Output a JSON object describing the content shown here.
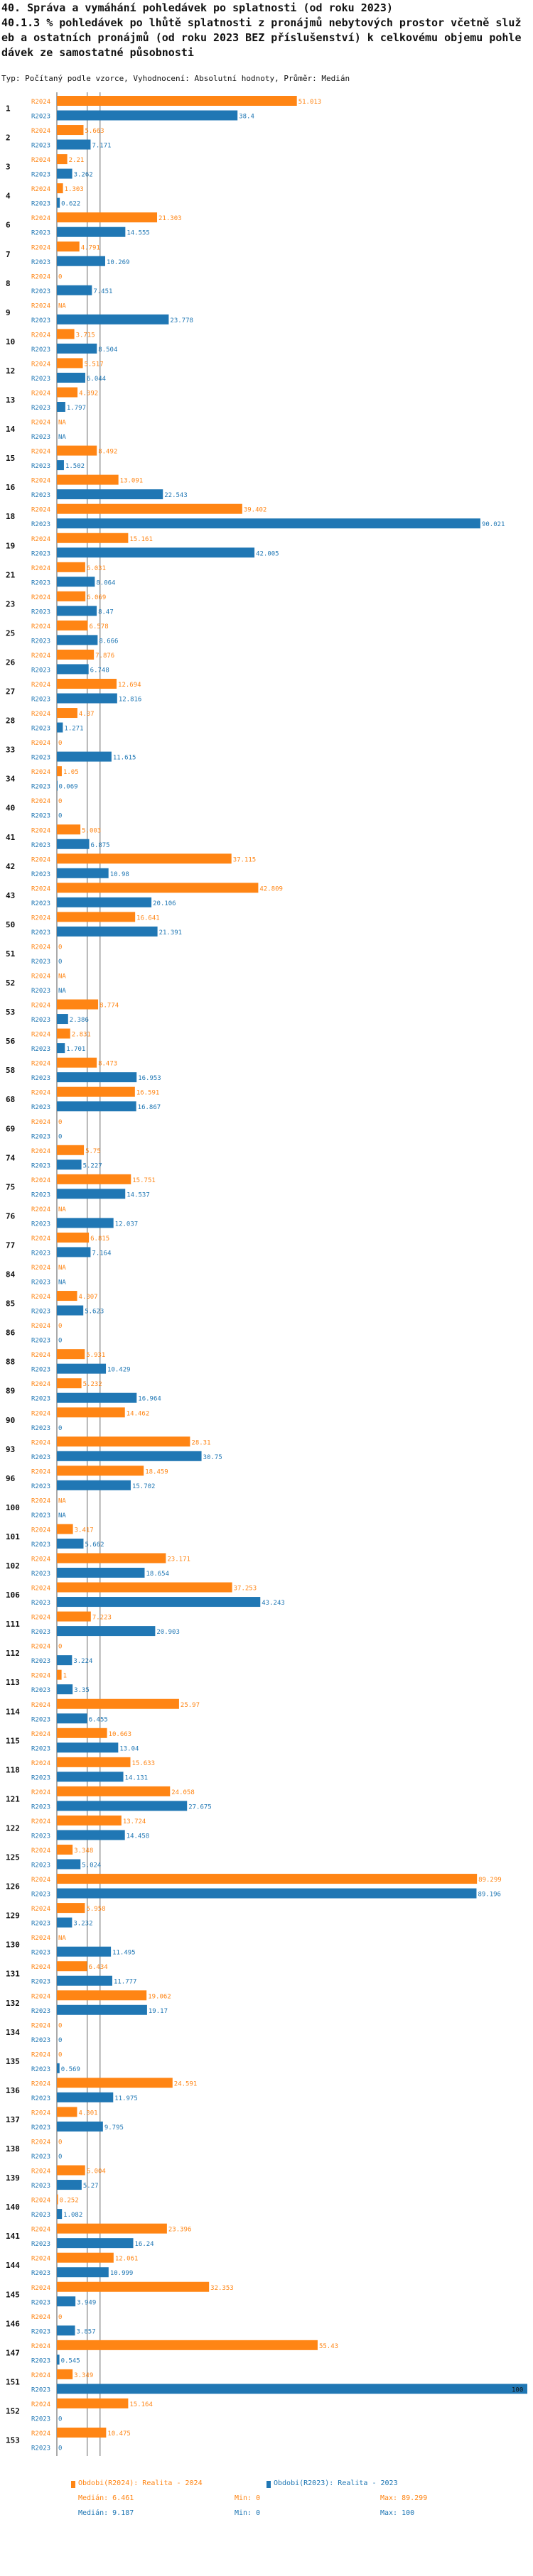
{
  "header": {
    "title_line1": "40. Správa a vymáhání pohledávek po splatnosti (od roku 2023)",
    "title_line2": "40.1.3 % pohledávek po lhůtě splatnosti z pronájmů nebytových prostor včetně služ",
    "title_line3": "eb a ostatních pronájmů (od roku 2023 BEZ příslušenství) k celkovému objemu pohle",
    "title_line4": "dávek ze samostatné působnosti",
    "subtitle": "Typ: Počítaný podle vzorce, Vyhodnocení: Absolutní hodnoty, Průměr: Medián"
  },
  "colors": {
    "r2024": "#ff8514",
    "r2023": "#2077b4"
  },
  "legend": {
    "r2024_label": "Obdobi(R2024): Realita - 2024",
    "r2023_label": "Obdobi(R2023): Realita - 2023",
    "r2024_median": "Medián: 6.461",
    "r2024_min": "Min: 0",
    "r2024_max": "Max: 89.299",
    "r2023_median": "Medián: 9.187",
    "r2023_min": "Min: 0",
    "r2023_max": "Max: 100"
  },
  "chart_data": {
    "type": "bar",
    "orientation": "horizontal",
    "series_names": [
      "R2024",
      "R2023"
    ],
    "xlim": [
      0,
      100
    ],
    "median_lines": {
      "R2024": 6.461,
      "R2023": 9.187
    },
    "rows": [
      {
        "id": "1",
        "r2024": 51.013,
        "r2023": 38.4
      },
      {
        "id": "2",
        "r2024": 5.663,
        "r2023": 7.171
      },
      {
        "id": "3",
        "r2024": 2.21,
        "r2023": 3.262
      },
      {
        "id": "4",
        "r2024": 1.303,
        "r2023": 0.622
      },
      {
        "id": "6",
        "r2024": 21.303,
        "r2023": 14.555
      },
      {
        "id": "7",
        "r2024": 4.791,
        "r2023": 10.269
      },
      {
        "id": "8",
        "r2024": 0,
        "r2023": 7.451
      },
      {
        "id": "9",
        "r2024": null,
        "r2023": 23.778
      },
      {
        "id": "10",
        "r2024": 3.715,
        "r2023": 8.504
      },
      {
        "id": "12",
        "r2024": 5.517,
        "r2023": 6.044
      },
      {
        "id": "13",
        "r2024": 4.392,
        "r2023": 1.797
      },
      {
        "id": "14",
        "r2024": null,
        "r2023": null
      },
      {
        "id": "15",
        "r2024": 8.492,
        "r2023": 1.502
      },
      {
        "id": "16",
        "r2024": 13.091,
        "r2023": 22.543
      },
      {
        "id": "18",
        "r2024": 39.402,
        "r2023": 90.021
      },
      {
        "id": "19",
        "r2024": 15.161,
        "r2023": 42.005
      },
      {
        "id": "21",
        "r2024": 6.031,
        "r2023": 8.064
      },
      {
        "id": "23",
        "r2024": 6.069,
        "r2023": 8.47
      },
      {
        "id": "25",
        "r2024": 6.578,
        "r2023": 8.666
      },
      {
        "id": "26",
        "r2024": 7.876,
        "r2023": 6.748
      },
      {
        "id": "27",
        "r2024": 12.694,
        "r2023": 12.816
      },
      {
        "id": "28",
        "r2024": 4.37,
        "r2023": 1.271
      },
      {
        "id": "33",
        "r2024": 0,
        "r2023": 11.615
      },
      {
        "id": "34",
        "r2024": 1.05,
        "r2023": 0.069
      },
      {
        "id": "40",
        "r2024": 0,
        "r2023": 0
      },
      {
        "id": "41",
        "r2024": 5.003,
        "r2023": 6.875
      },
      {
        "id": "42",
        "r2024": 37.115,
        "r2023": 10.98
      },
      {
        "id": "43",
        "r2024": 42.809,
        "r2023": 20.106
      },
      {
        "id": "50",
        "r2024": 16.641,
        "r2023": 21.391
      },
      {
        "id": "51",
        "r2024": 0,
        "r2023": 0
      },
      {
        "id": "52",
        "r2024": null,
        "r2023": null
      },
      {
        "id": "53",
        "r2024": 8.774,
        "r2023": 2.386
      },
      {
        "id": "56",
        "r2024": 2.831,
        "r2023": 1.701
      },
      {
        "id": "58",
        "r2024": 8.473,
        "r2023": 16.953
      },
      {
        "id": "68",
        "r2024": 16.591,
        "r2023": 16.867
      },
      {
        "id": "69",
        "r2024": 0,
        "r2023": 0
      },
      {
        "id": "74",
        "r2024": 5.75,
        "r2023": 5.227
      },
      {
        "id": "75",
        "r2024": 15.751,
        "r2023": 14.537
      },
      {
        "id": "76",
        "r2024": null,
        "r2023": 12.037
      },
      {
        "id": "77",
        "r2024": 6.815,
        "r2023": 7.164
      },
      {
        "id": "84",
        "r2024": null,
        "r2023": null
      },
      {
        "id": "85",
        "r2024": 4.307,
        "r2023": 5.623
      },
      {
        "id": "86",
        "r2024": 0,
        "r2023": 0
      },
      {
        "id": "88",
        "r2024": 5.931,
        "r2023": 10.429
      },
      {
        "id": "89",
        "r2024": 5.232,
        "r2023": 16.964
      },
      {
        "id": "90",
        "r2024": 14.462,
        "r2023": 0
      },
      {
        "id": "93",
        "r2024": 28.31,
        "r2023": 30.75
      },
      {
        "id": "96",
        "r2024": 18.459,
        "r2023": 15.702
      },
      {
        "id": "100",
        "r2024": null,
        "r2023": null
      },
      {
        "id": "101",
        "r2024": 3.417,
        "r2023": 5.662
      },
      {
        "id": "102",
        "r2024": 23.171,
        "r2023": 18.654
      },
      {
        "id": "106",
        "r2024": 37.253,
        "r2023": 43.243
      },
      {
        "id": "111",
        "r2024": 7.223,
        "r2023": 20.903
      },
      {
        "id": "112",
        "r2024": 0,
        "r2023": 3.224
      },
      {
        "id": "113",
        "r2024": 1,
        "r2023": 3.35
      },
      {
        "id": "114",
        "r2024": 25.97,
        "r2023": 6.455
      },
      {
        "id": "115",
        "r2024": 10.663,
        "r2023": 13.04
      },
      {
        "id": "118",
        "r2024": 15.633,
        "r2023": 14.131
      },
      {
        "id": "121",
        "r2024": 24.058,
        "r2023": 27.675
      },
      {
        "id": "122",
        "r2024": 13.724,
        "r2023": 14.458
      },
      {
        "id": "125",
        "r2024": 3.348,
        "r2023": 5.024
      },
      {
        "id": "126",
        "r2024": 89.299,
        "r2023": 89.196
      },
      {
        "id": "129",
        "r2024": 5.958,
        "r2023": 3.232
      },
      {
        "id": "130",
        "r2024": null,
        "r2023": 11.495
      },
      {
        "id": "131",
        "r2024": 6.434,
        "r2023": 11.777
      },
      {
        "id": "132",
        "r2024": 19.062,
        "r2023": 19.17
      },
      {
        "id": "134",
        "r2024": 0,
        "r2023": 0
      },
      {
        "id": "135",
        "r2024": 0,
        "r2023": 0.569
      },
      {
        "id": "136",
        "r2024": 24.591,
        "r2023": 11.975
      },
      {
        "id": "137",
        "r2024": 4.301,
        "r2023": 9.795
      },
      {
        "id": "138",
        "r2024": 0,
        "r2023": 0
      },
      {
        "id": "139",
        "r2024": 6.004,
        "r2023": 5.27
      },
      {
        "id": "140",
        "r2024": 0.252,
        "r2023": 1.082
      },
      {
        "id": "141",
        "r2024": 23.396,
        "r2023": 16.24
      },
      {
        "id": "144",
        "r2024": 12.061,
        "r2023": 10.999
      },
      {
        "id": "145",
        "r2024": 32.353,
        "r2023": 3.949
      },
      {
        "id": "146",
        "r2024": 0,
        "r2023": 3.857
      },
      {
        "id": "147",
        "r2024": 55.43,
        "r2023": 0.545
      },
      {
        "id": "151",
        "r2024": 3.349,
        "r2023": 100
      },
      {
        "id": "152",
        "r2024": 15.164,
        "r2023": 0
      },
      {
        "id": "153",
        "r2024": 10.475,
        "r2023": 0
      }
    ]
  }
}
